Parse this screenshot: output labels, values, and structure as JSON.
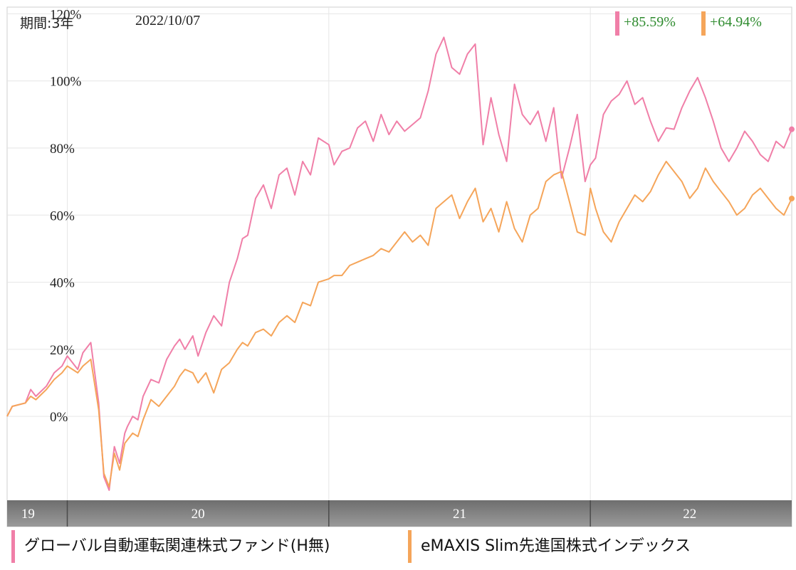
{
  "header": {
    "period_label": "期間:3年",
    "date": "2022/10/07",
    "returns": [
      {
        "value": "+85.59%",
        "color": "#f07fa8"
      },
      {
        "value": "+64.94%",
        "color": "#f5a55a"
      }
    ]
  },
  "legend": [
    {
      "label": "グローバル自動運転関連株式ファンド(H無)",
      "color": "#f07fa8"
    },
    {
      "label": "eMAXIS Slim先進国株式インデックス",
      "color": "#f5a55a"
    }
  ],
  "chart_data": {
    "type": "line",
    "ylim": [
      -25,
      122
    ],
    "y_ticks": [
      0,
      20,
      40,
      60,
      80,
      100,
      120
    ],
    "y_tick_labels": [
      "0%",
      "20%",
      "40%",
      "60%",
      "80%",
      "100%",
      "120%"
    ],
    "x_range": [
      2019.77,
      2022.77
    ],
    "year_labels": [
      {
        "label": "19",
        "x": 2019.85
      },
      {
        "label": "20",
        "x": 2020.5
      },
      {
        "label": "21",
        "x": 2021.5
      },
      {
        "label": "22",
        "x": 2022.38
      }
    ],
    "year_boundaries": [
      2020.0,
      2021.0,
      2022.0
    ],
    "grid": true,
    "series": [
      {
        "name": "グローバル自動運転関連株式ファンド(H無)",
        "color": "#f07fa8",
        "x": [
          2019.77,
          2019.79,
          2019.84,
          2019.86,
          2019.88,
          2019.92,
          2019.95,
          2019.98,
          2020.0,
          2020.04,
          2020.06,
          2020.09,
          2020.12,
          2020.14,
          2020.16,
          2020.18,
          2020.2,
          2020.22,
          2020.23,
          2020.25,
          2020.27,
          2020.29,
          2020.32,
          2020.35,
          2020.38,
          2020.41,
          2020.43,
          2020.45,
          2020.48,
          2020.5,
          2020.53,
          2020.56,
          2020.59,
          2020.62,
          2020.65,
          2020.67,
          2020.69,
          2020.72,
          2020.75,
          2020.78,
          2020.81,
          2020.84,
          2020.87,
          2020.9,
          2020.93,
          2020.96,
          2021.0,
          2021.02,
          2021.05,
          2021.08,
          2021.11,
          2021.14,
          2021.17,
          2021.2,
          2021.23,
          2021.26,
          2021.29,
          2021.32,
          2021.35,
          2021.38,
          2021.41,
          2021.44,
          2021.47,
          2021.5,
          2021.53,
          2021.56,
          2021.59,
          2021.62,
          2021.65,
          2021.68,
          2021.71,
          2021.74,
          2021.77,
          2021.8,
          2021.83,
          2021.86,
          2021.89,
          2021.92,
          2021.95,
          2021.98,
          2022.0,
          2022.02,
          2022.05,
          2022.08,
          2022.11,
          2022.14,
          2022.17,
          2022.2,
          2022.23,
          2022.26,
          2022.29,
          2022.32,
          2022.35,
          2022.38,
          2022.41,
          2022.44,
          2022.47,
          2022.5,
          2022.53,
          2022.56,
          2022.59,
          2022.62,
          2022.65,
          2022.68,
          2022.71,
          2022.74,
          2022.77
        ],
        "y": [
          0,
          3,
          4,
          8,
          6,
          9,
          13,
          15,
          18,
          14,
          19,
          22,
          4,
          -18,
          -22,
          -9,
          -14,
          -5,
          -3,
          0,
          -1,
          6,
          11,
          10,
          17,
          21,
          23,
          20,
          24,
          18,
          25,
          30,
          27,
          40,
          47,
          53,
          54,
          65,
          69,
          62,
          72,
          74,
          66,
          76,
          72,
          83,
          81,
          75,
          79,
          80,
          86,
          88,
          82,
          90,
          84,
          88,
          85,
          87,
          89,
          97,
          108,
          113,
          104,
          102,
          108,
          111,
          81,
          95,
          84,
          76,
          99,
          90,
          87,
          91,
          82,
          92,
          71,
          80,
          90,
          70,
          75,
          77,
          90,
          94,
          96,
          100,
          93,
          95,
          88,
          82,
          86,
          85.6,
          92,
          97,
          101,
          95,
          88,
          80,
          76,
          80,
          85,
          82,
          78,
          76,
          82,
          80,
          85.59
        ]
      },
      {
        "name": "eMAXIS Slim先進国株式インデックス",
        "color": "#f5a55a",
        "x": [
          2019.77,
          2019.79,
          2019.84,
          2019.86,
          2019.88,
          2019.92,
          2019.95,
          2019.98,
          2020.0,
          2020.04,
          2020.06,
          2020.09,
          2020.12,
          2020.14,
          2020.16,
          2020.18,
          2020.2,
          2020.22,
          2020.23,
          2020.25,
          2020.27,
          2020.29,
          2020.32,
          2020.35,
          2020.38,
          2020.41,
          2020.43,
          2020.45,
          2020.48,
          2020.5,
          2020.53,
          2020.56,
          2020.59,
          2020.62,
          2020.65,
          2020.67,
          2020.69,
          2020.72,
          2020.75,
          2020.78,
          2020.81,
          2020.84,
          2020.87,
          2020.9,
          2020.93,
          2020.96,
          2021.0,
          2021.02,
          2021.05,
          2021.08,
          2021.11,
          2021.14,
          2021.17,
          2021.2,
          2021.23,
          2021.26,
          2021.29,
          2021.32,
          2021.35,
          2021.38,
          2021.41,
          2021.44,
          2021.47,
          2021.5,
          2021.53,
          2021.56,
          2021.59,
          2021.62,
          2021.65,
          2021.68,
          2021.71,
          2021.74,
          2021.77,
          2021.8,
          2021.83,
          2021.86,
          2021.89,
          2021.92,
          2021.95,
          2021.98,
          2022.0,
          2022.02,
          2022.05,
          2022.08,
          2022.11,
          2022.14,
          2022.17,
          2022.2,
          2022.23,
          2022.26,
          2022.29,
          2022.32,
          2022.35,
          2022.38,
          2022.41,
          2022.44,
          2022.47,
          2022.5,
          2022.53,
          2022.56,
          2022.59,
          2022.62,
          2022.65,
          2022.68,
          2022.71,
          2022.74,
          2022.77
        ],
        "y": [
          0,
          3,
          4,
          6,
          5,
          8,
          11,
          13,
          15,
          13,
          15,
          17,
          2,
          -17,
          -21,
          -11,
          -16,
          -8,
          -7,
          -5,
          -6,
          -1,
          5,
          3,
          6,
          9,
          12,
          14,
          13,
          10,
          13,
          7,
          14,
          16,
          20,
          22,
          21,
          25,
          26,
          24,
          28,
          30,
          28,
          34,
          33,
          40,
          41,
          42,
          42,
          45,
          46,
          47,
          48,
          50,
          49,
          52,
          55,
          52,
          54,
          51,
          62,
          64,
          66,
          59,
          64,
          68,
          58,
          62,
          55,
          64,
          56,
          52,
          60,
          62,
          70,
          72,
          73,
          64,
          55,
          54,
          68,
          62,
          55,
          52,
          58,
          62,
          66,
          64,
          67,
          72,
          76,
          73,
          70,
          65,
          68,
          74,
          70,
          67,
          64,
          60,
          62,
          66,
          68,
          65,
          62,
          60,
          64.94
        ]
      }
    ]
  }
}
